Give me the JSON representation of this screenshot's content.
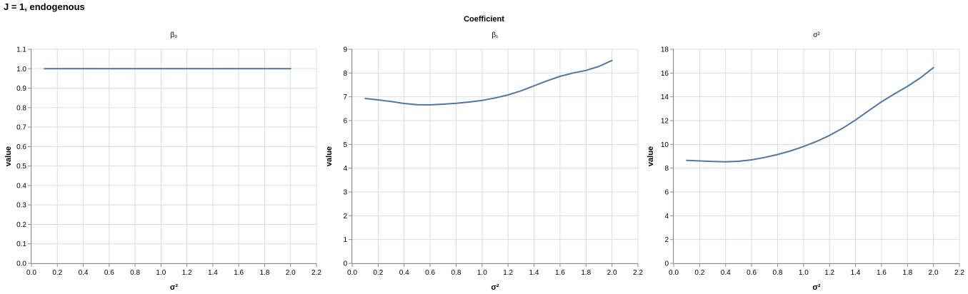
{
  "title": "J = 1, endogenous",
  "facet_title": "Coefficient",
  "chart_data": [
    {
      "type": "line",
      "title": "β₀",
      "xlabel": "σ²",
      "ylabel": "value",
      "xlim": [
        0,
        2.2
      ],
      "ylim": [
        0,
        1.1
      ],
      "xticks": [
        0.0,
        0.2,
        0.4,
        0.6,
        0.8,
        1.0,
        1.2,
        1.4,
        1.6,
        1.8,
        2.0,
        2.2
      ],
      "yticks": [
        0.0,
        0.1,
        0.2,
        0.3,
        0.4,
        0.5,
        0.6,
        0.7,
        0.8,
        0.9,
        1.0,
        1.1
      ],
      "grid": true,
      "x": [
        0.1,
        0.2,
        0.3,
        0.4,
        0.5,
        0.6,
        0.7,
        0.8,
        0.9,
        1.0,
        1.1,
        1.2,
        1.3,
        1.4,
        1.5,
        1.6,
        1.7,
        1.8,
        1.9,
        2.0
      ],
      "series": [
        {
          "color": "#4c78a8",
          "values": [
            1.0,
            1.0,
            1.0,
            1.0,
            1.0,
            1.0,
            1.0,
            1.0,
            1.0,
            1.0,
            1.0,
            1.0,
            1.0,
            1.0,
            1.0,
            1.0,
            1.0,
            1.0,
            1.0,
            1.0
          ]
        }
      ]
    },
    {
      "type": "line",
      "title": "β₁",
      "xlabel": "σ²",
      "ylabel": "value",
      "xlim": [
        0,
        2.2
      ],
      "ylim": [
        0,
        9
      ],
      "xticks": [
        0.0,
        0.2,
        0.4,
        0.6,
        0.8,
        1.0,
        1.2,
        1.4,
        1.6,
        1.8,
        2.0,
        2.2
      ],
      "yticks": [
        0,
        1,
        2,
        3,
        4,
        5,
        6,
        7,
        8,
        9
      ],
      "grid": true,
      "x": [
        0.1,
        0.2,
        0.3,
        0.4,
        0.5,
        0.6,
        0.7,
        0.8,
        0.9,
        1.0,
        1.1,
        1.2,
        1.3,
        1.4,
        1.5,
        1.6,
        1.7,
        1.8,
        1.9,
        2.0
      ],
      "series": [
        {
          "color": "#4c78a8",
          "values": [
            6.93,
            6.87,
            6.8,
            6.72,
            6.67,
            6.66,
            6.69,
            6.73,
            6.78,
            6.85,
            6.95,
            7.08,
            7.25,
            7.46,
            7.67,
            7.86,
            8.0,
            8.11,
            8.28,
            8.53
          ]
        }
      ]
    },
    {
      "type": "line",
      "title": "σ²",
      "xlabel": "σ²",
      "ylabel": "value",
      "xlim": [
        0,
        2.2
      ],
      "ylim": [
        0,
        18
      ],
      "xticks": [
        0.0,
        0.2,
        0.4,
        0.6,
        0.8,
        1.0,
        1.2,
        1.4,
        1.6,
        1.8,
        2.0,
        2.2
      ],
      "yticks": [
        0,
        2,
        4,
        6,
        8,
        10,
        12,
        14,
        16,
        18
      ],
      "grid": true,
      "x": [
        0.1,
        0.2,
        0.3,
        0.4,
        0.5,
        0.6,
        0.7,
        0.8,
        0.9,
        1.0,
        1.1,
        1.2,
        1.3,
        1.4,
        1.5,
        1.6,
        1.7,
        1.8,
        1.9,
        2.0
      ],
      "series": [
        {
          "color": "#4c78a8",
          "values": [
            8.66,
            8.61,
            8.56,
            8.53,
            8.58,
            8.7,
            8.9,
            9.15,
            9.45,
            9.82,
            10.25,
            10.75,
            11.35,
            12.05,
            12.82,
            13.58,
            14.25,
            14.88,
            15.6,
            16.45
          ]
        }
      ]
    }
  ]
}
